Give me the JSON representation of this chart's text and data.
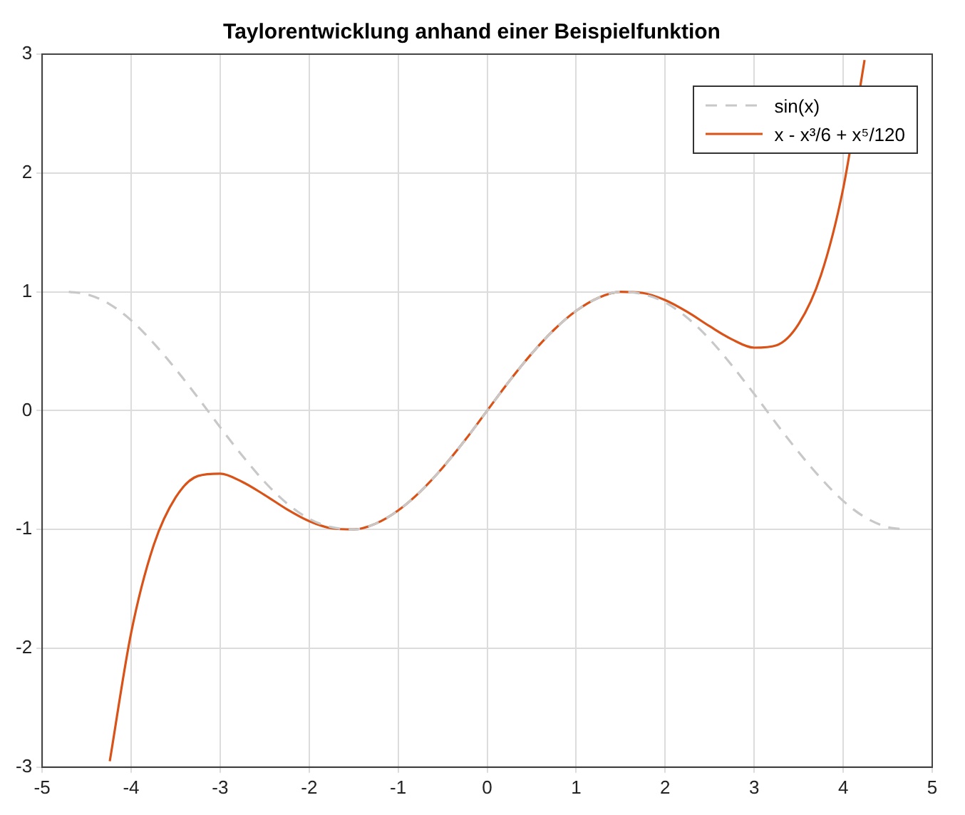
{
  "chart_data": {
    "type": "line",
    "title": "Taylorentwicklung anhand einer Beispielfunktion",
    "xlim": [
      -5,
      5
    ],
    "xticks": [
      -5,
      -4,
      -3,
      -2,
      -1,
      0,
      1,
      2,
      3,
      4,
      5
    ],
    "ylim": [
      -3,
      3
    ],
    "yticks": [
      -3,
      -2,
      -1,
      0,
      1,
      2,
      3
    ],
    "grid": true,
    "legend": "top right",
    "marker": "none",
    "series": [
      {
        "name": "sin(x)",
        "color": "#c8c8c8",
        "line_style": "dashed",
        "x": [
          -4.7,
          -4.5,
          -4.25,
          -4,
          -3.75,
          -3.5,
          -3.25,
          -3,
          -2.75,
          -2.5,
          -2.25,
          -2,
          -1.75,
          -1.5,
          -1.25,
          -1,
          -0.75,
          -0.5,
          -0.25,
          0,
          0.25,
          0.5,
          0.75,
          1,
          1.25,
          1.5,
          1.75,
          2,
          2.25,
          2.5,
          2.75,
          3,
          3.25,
          3.5,
          3.75,
          4,
          4.25,
          4.5,
          4.7
        ],
        "values": [
          1.0,
          0.98,
          0.9,
          0.76,
          0.57,
          0.35,
          0.11,
          -0.14,
          -0.38,
          -0.6,
          -0.78,
          -0.91,
          -0.98,
          -1.0,
          -0.95,
          -0.84,
          -0.68,
          -0.48,
          -0.25,
          0,
          0.25,
          0.48,
          0.68,
          0.84,
          0.95,
          1.0,
          0.98,
          0.91,
          0.78,
          0.6,
          0.38,
          0.14,
          -0.11,
          -0.35,
          -0.57,
          -0.76,
          -0.9,
          -0.98,
          -1.0
        ]
      },
      {
        "name": "x - x³/6 + x⁵/120",
        "color": "#d95319",
        "line_style": "solid",
        "x": [
          -4.24,
          -4,
          -3.75,
          -3.5,
          -3.25,
          -3,
          -2.75,
          -2.5,
          -2.25,
          -2,
          -1.75,
          -1.5,
          -1.25,
          -1,
          -0.75,
          -0.5,
          -0.25,
          0,
          0.25,
          0.5,
          0.75,
          1,
          1.25,
          1.5,
          1.75,
          2,
          2.25,
          2.5,
          2.75,
          3,
          3.25,
          3.5,
          3.75,
          4,
          4.24
        ],
        "values": [
          -2.95,
          -1.87,
          -1.14,
          -0.73,
          -0.55,
          -0.53,
          -0.6,
          -0.71,
          -0.83,
          -0.93,
          -0.99,
          -1.0,
          -0.95,
          -0.84,
          -0.68,
          -0.48,
          -0.25,
          0,
          0.25,
          0.48,
          0.68,
          0.84,
          0.95,
          1.0,
          0.99,
          0.93,
          0.83,
          0.71,
          0.6,
          0.53,
          0.55,
          0.73,
          1.14,
          1.87,
          2.95
        ]
      }
    ]
  }
}
